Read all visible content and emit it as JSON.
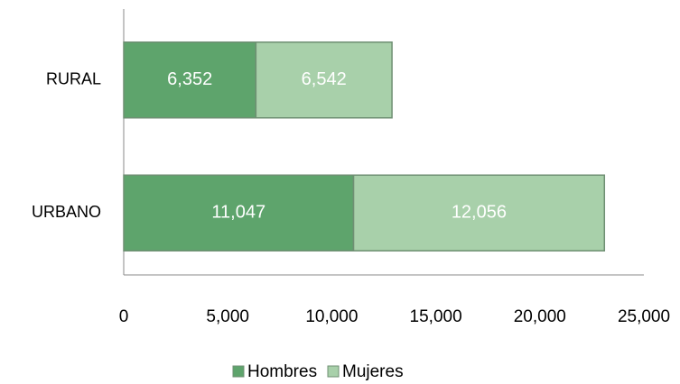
{
  "chart_data": {
    "type": "stacked_barh",
    "categories": [
      "RURAL",
      "URBANO"
    ],
    "series": [
      {
        "name": "Hombres",
        "color": "#5ea46c",
        "values": [
          6352,
          11047
        ],
        "value_labels": [
          "6,352",
          "11,047"
        ]
      },
      {
        "name": "Mujeres",
        "color": "#a8d0aa",
        "values": [
          6542,
          12056
        ],
        "value_labels": [
          "6,542",
          "12,056"
        ]
      }
    ],
    "xlim": [
      0,
      25000
    ],
    "xticks": [
      0,
      {
        "value": 5000,
        "label": "5,000"
      },
      {
        "value": 10000,
        "label": "10,000"
      },
      {
        "value": 15000,
        "label": "15,000"
      },
      {
        "value": 20000,
        "label": "20,000"
      },
      {
        "value": 25000,
        "label": "25,000"
      }
    ],
    "legend": "bottom"
  }
}
